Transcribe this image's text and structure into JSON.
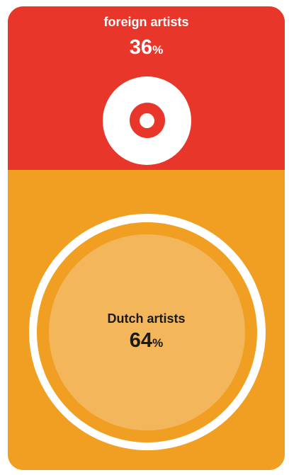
{
  "chart_data": {
    "type": "pie",
    "categories": [
      "foreign artists",
      "Dutch artists"
    ],
    "values": [
      36,
      64
    ],
    "unit": "%",
    "colors": {
      "foreign artists": "#e8362a",
      "Dutch artists": "#f09f22"
    }
  }
}
